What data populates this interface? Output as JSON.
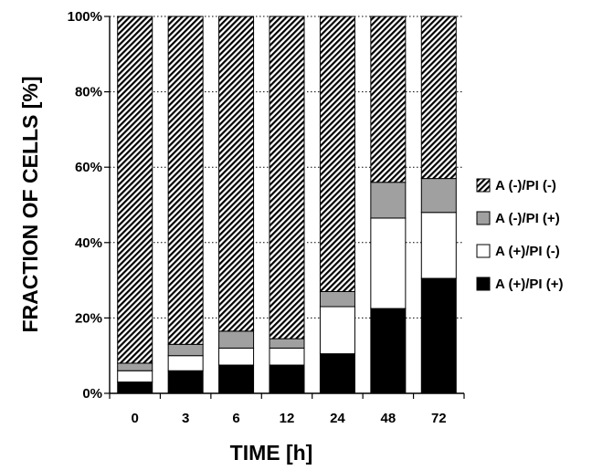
{
  "chart_data": {
    "type": "bar",
    "stacked": true,
    "percent": true,
    "categories": [
      "0",
      "3",
      "6",
      "12",
      "24",
      "48",
      "72"
    ],
    "series": [
      {
        "name": "A (+)/PI (+)",
        "color": "#000000",
        "pattern": "solid",
        "values": [
          3,
          6,
          7.5,
          7.5,
          10.5,
          22.5,
          30.5
        ]
      },
      {
        "name": "A (+)/PI (-)",
        "color": "#ffffff",
        "pattern": "solid",
        "values": [
          3,
          4,
          4.5,
          4.5,
          12.5,
          24,
          17.5
        ]
      },
      {
        "name": "A (-)/PI (+)",
        "color": "#a0a0a0",
        "pattern": "solid",
        "values": [
          2,
          3,
          4.5,
          2.5,
          4,
          9.5,
          9
        ]
      },
      {
        "name": "A (-)/PI (-)",
        "color": "#000000",
        "pattern": "diagonal-hatch",
        "values": [
          92,
          87,
          83.5,
          85.5,
          73,
          44,
          43
        ]
      }
    ],
    "xlabel": "TIME [h]",
    "ylabel": "FRACTION OF CELLS [%]",
    "ylim": [
      0,
      100
    ],
    "yticks": [
      "0%",
      "20%",
      "40%",
      "60%",
      "80%",
      "100%"
    ],
    "grid": true,
    "legend_position": "right",
    "legend_order": [
      "A (-)/PI (-)",
      "A (-)/PI (+)",
      "A (+)/PI (-)",
      "A (+)/PI (+)"
    ]
  }
}
